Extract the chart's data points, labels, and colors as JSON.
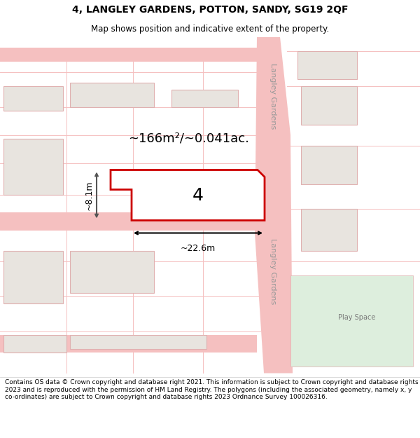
{
  "title": "4, LANGLEY GARDENS, POTTON, SANDY, SG19 2QF",
  "subtitle": "Map shows position and indicative extent of the property.",
  "footer": "Contains OS data © Crown copyright and database right 2021. This information is subject to Crown copyright and database rights 2023 and is reproduced with the permission of HM Land Registry. The polygons (including the associated geometry, namely x, y co-ordinates) are subject to Crown copyright and database rights 2023 Ordnance Survey 100026316.",
  "map_bg": "#ffffff",
  "plot_fill": "#e8e4df",
  "road_color": "#f5c0c0",
  "highlight_color": "#cc0000",
  "green_area": "#ddeedd",
  "label_number": "4",
  "area_label": "~166m²/~0.041ac.",
  "width_label": "~22.6m",
  "height_label": "~8.1m",
  "road_name_top": "Langley Gardens",
  "road_name_bottom": "Langley Gardens",
  "play_space_label": "Play Space",
  "title_fontsize": 10,
  "subtitle_fontsize": 8.5,
  "footer_fontsize": 6.5
}
